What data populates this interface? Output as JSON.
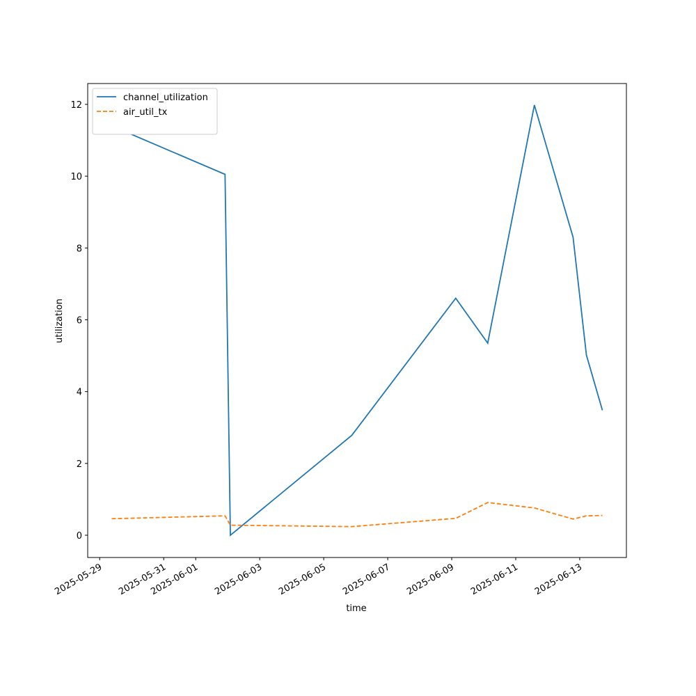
{
  "chart_data": {
    "type": "line",
    "x_label": "time",
    "y_label": "utilization",
    "x": [
      "2025-05-29T09:00",
      "2025-06-01T22:00",
      "2025-06-02T02:00",
      "2025-06-05T21:00",
      "2025-06-09T03:00",
      "2025-06-10T03:00",
      "2025-06-11T14:00",
      "2025-06-12T19:00",
      "2025-06-13T05:00",
      "2025-06-13T17:00"
    ],
    "series": [
      {
        "name": "channel_utilization",
        "color": "#1f77b4",
        "dash": "solid",
        "values": [
          11.4,
          10.05,
          0.0,
          2.78,
          6.6,
          5.35,
          11.98,
          8.3,
          5.02,
          3.48
        ]
      },
      {
        "name": "air_util_tx",
        "color": "#ff7f0e",
        "dash": "dashed",
        "values": [
          0.46,
          0.54,
          0.28,
          0.24,
          0.47,
          0.91,
          0.76,
          0.45,
          0.54,
          0.55
        ]
      }
    ],
    "xlim": [
      "2025-05-28T15:00",
      "2025-06-14T11:00"
    ],
    "xticks": [
      "2025-05-29",
      "2025-05-31",
      "2025-06-01",
      "2025-06-03",
      "2025-06-05",
      "2025-06-07",
      "2025-06-09",
      "2025-06-11",
      "2025-06-13"
    ],
    "ylim": [
      -0.62,
      12.58
    ],
    "yticks": [
      0,
      2,
      4,
      6,
      8,
      10,
      12
    ],
    "legend": "upper left",
    "grid": false
  }
}
